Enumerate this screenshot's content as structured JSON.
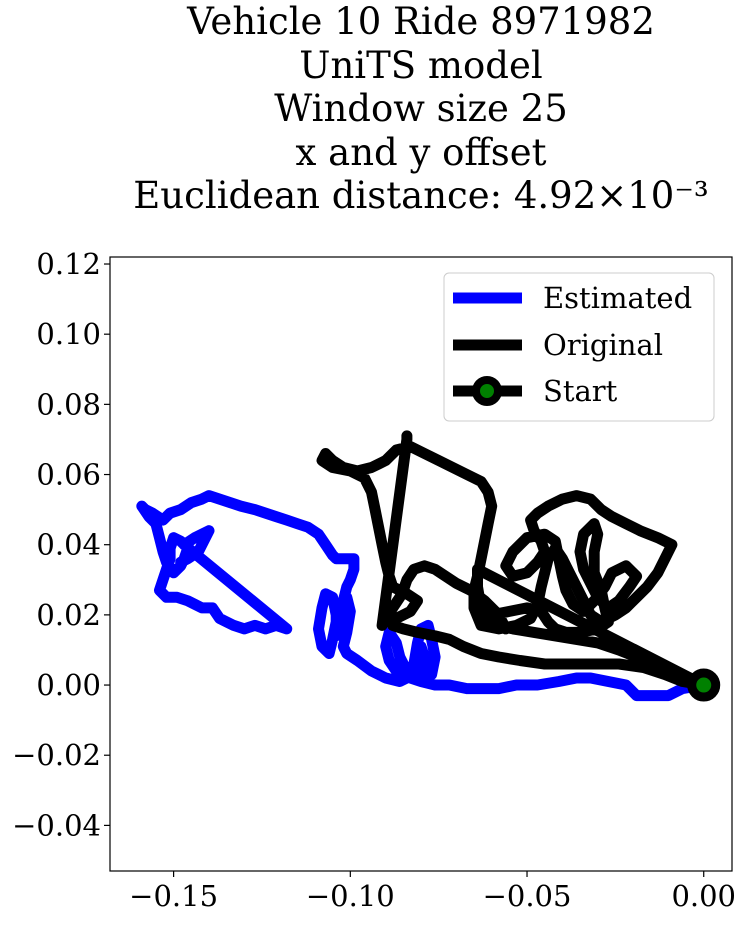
{
  "chart_data": {
    "type": "line",
    "title_lines": [
      "Vehicle 10 Ride 8971982",
      "UniTS model",
      "Window size 25",
      "x and y offset",
      "Euclidean distance: 4.92×10⁻³"
    ],
    "xlabel": "",
    "ylabel": "",
    "xlim": [
      -0.168,
      0.008
    ],
    "ylim": [
      -0.053,
      0.122
    ],
    "x_ticks": [
      -0.15,
      -0.1,
      -0.05,
      0.0
    ],
    "x_tick_labels": [
      "−0.15",
      "−0.10",
      "−0.05",
      "0.00"
    ],
    "y_ticks": [
      -0.04,
      -0.02,
      0.0,
      0.02,
      0.04,
      0.06,
      0.08,
      0.1,
      0.12
    ],
    "y_tick_labels": [
      "−0.04",
      "−0.02",
      "0.00",
      "0.02",
      "0.04",
      "0.06",
      "0.08",
      "0.10",
      "0.12"
    ],
    "grid": false,
    "legend_position": "top-right",
    "series": [
      {
        "name": "Estimated",
        "color": "#0000ff",
        "points": [
          [
            0.0,
            0.0
          ],
          [
            -0.006,
            -0.001
          ],
          [
            -0.01,
            -0.003
          ],
          [
            -0.014,
            -0.003
          ],
          [
            -0.019,
            -0.003
          ],
          [
            -0.022,
            0.0
          ],
          [
            -0.027,
            0.001
          ],
          [
            -0.032,
            0.002
          ],
          [
            -0.036,
            0.002
          ],
          [
            -0.041,
            0.001
          ],
          [
            -0.047,
            0.0
          ],
          [
            -0.053,
            0.0
          ],
          [
            -0.058,
            -0.001
          ],
          [
            -0.062,
            -0.001
          ],
          [
            -0.067,
            -0.001
          ],
          [
            -0.072,
            0.0
          ],
          [
            -0.076,
            0.0
          ],
          [
            -0.08,
            0.001
          ],
          [
            -0.083,
            0.002
          ],
          [
            -0.085,
            0.003
          ],
          [
            -0.087,
            0.004
          ],
          [
            -0.089,
            0.007
          ],
          [
            -0.09,
            0.011
          ],
          [
            -0.089,
            0.015
          ],
          [
            -0.087,
            0.012
          ],
          [
            -0.086,
            0.008
          ],
          [
            -0.084,
            0.004
          ],
          [
            -0.082,
            0.002
          ],
          [
            -0.08,
            0.004
          ],
          [
            -0.079,
            0.008
          ],
          [
            -0.08,
            0.011
          ],
          [
            -0.081,
            0.005
          ],
          [
            -0.08,
            0.002
          ],
          [
            -0.077,
            0.003
          ],
          [
            -0.076,
            0.008
          ],
          [
            -0.077,
            0.013
          ],
          [
            -0.078,
            0.017
          ],
          [
            -0.08,
            0.016
          ],
          [
            -0.081,
            0.012
          ],
          [
            -0.082,
            0.006
          ],
          [
            -0.084,
            0.002
          ],
          [
            -0.086,
            0.001
          ],
          [
            -0.09,
            0.002
          ],
          [
            -0.094,
            0.004
          ],
          [
            -0.098,
            0.007
          ],
          [
            -0.101,
            0.009
          ],
          [
            -0.102,
            0.011
          ],
          [
            -0.101,
            0.015
          ],
          [
            -0.1,
            0.021
          ],
          [
            -0.101,
            0.025
          ],
          [
            -0.102,
            0.022
          ],
          [
            -0.104,
            0.018
          ],
          [
            -0.105,
            0.013
          ],
          [
            -0.106,
            0.009
          ],
          [
            -0.108,
            0.011
          ],
          [
            -0.109,
            0.016
          ],
          [
            -0.108,
            0.022
          ],
          [
            -0.107,
            0.026
          ],
          [
            -0.105,
            0.025
          ],
          [
            -0.104,
            0.02
          ],
          [
            -0.104,
            0.014
          ],
          [
            -0.103,
            0.019
          ],
          [
            -0.102,
            0.024
          ],
          [
            -0.101,
            0.028
          ],
          [
            -0.1,
            0.03
          ],
          [
            -0.099,
            0.033
          ],
          [
            -0.099,
            0.036
          ],
          [
            -0.101,
            0.036
          ],
          [
            -0.104,
            0.036
          ],
          [
            -0.105,
            0.037
          ],
          [
            -0.107,
            0.04
          ],
          [
            -0.109,
            0.043
          ],
          [
            -0.112,
            0.045
          ],
          [
            -0.115,
            0.046
          ],
          [
            -0.118,
            0.047
          ],
          [
            -0.121,
            0.048
          ],
          [
            -0.124,
            0.049
          ],
          [
            -0.127,
            0.05
          ],
          [
            -0.131,
            0.051
          ],
          [
            -0.134,
            0.052
          ],
          [
            -0.137,
            0.053
          ],
          [
            -0.14,
            0.054
          ],
          [
            -0.142,
            0.053
          ],
          [
            -0.145,
            0.052
          ],
          [
            -0.148,
            0.05
          ],
          [
            -0.151,
            0.049
          ],
          [
            -0.153,
            0.047
          ],
          [
            -0.156,
            0.049
          ],
          [
            -0.158,
            0.05
          ],
          [
            -0.159,
            0.051
          ],
          [
            -0.157,
            0.048
          ],
          [
            -0.155,
            0.046
          ],
          [
            -0.154,
            0.042
          ],
          [
            -0.153,
            0.038
          ],
          [
            -0.152,
            0.035
          ],
          [
            -0.15,
            0.032
          ],
          [
            -0.148,
            0.034
          ],
          [
            -0.147,
            0.036
          ],
          [
            -0.146,
            0.039
          ],
          [
            -0.148,
            0.041
          ],
          [
            -0.15,
            0.042
          ],
          [
            -0.151,
            0.039
          ],
          [
            -0.151,
            0.036
          ],
          [
            -0.152,
            0.033
          ],
          [
            -0.153,
            0.03
          ],
          [
            -0.154,
            0.027
          ],
          [
            -0.152,
            0.025
          ],
          [
            -0.149,
            0.025
          ],
          [
            -0.146,
            0.024
          ],
          [
            -0.144,
            0.023
          ],
          [
            -0.142,
            0.022
          ],
          [
            -0.139,
            0.022
          ],
          [
            -0.137,
            0.019
          ],
          [
            -0.135,
            0.018
          ],
          [
            -0.133,
            0.017
          ],
          [
            -0.13,
            0.016
          ],
          [
            -0.127,
            0.017
          ],
          [
            -0.124,
            0.016
          ],
          [
            -0.121,
            0.017
          ],
          [
            -0.118,
            0.016
          ],
          [
            -0.147,
            0.04
          ],
          [
            -0.144,
            0.042
          ],
          [
            -0.142,
            0.043
          ],
          [
            -0.14,
            0.044
          ],
          [
            -0.143,
            0.038
          ],
          [
            -0.146,
            0.036
          ],
          [
            -0.148,
            0.035
          ]
        ]
      },
      {
        "name": "Original",
        "color": "#000000",
        "points": [
          [
            0.0,
            0.0
          ],
          [
            -0.004,
            0.002
          ],
          [
            -0.009,
            0.004
          ],
          [
            -0.014,
            0.006
          ],
          [
            -0.019,
            0.008
          ],
          [
            -0.024,
            0.01
          ],
          [
            -0.03,
            0.012
          ],
          [
            -0.036,
            0.013
          ],
          [
            -0.042,
            0.014
          ],
          [
            -0.048,
            0.015
          ],
          [
            -0.054,
            0.016
          ],
          [
            -0.059,
            0.017
          ],
          [
            -0.063,
            0.018
          ],
          [
            -0.06,
            0.02
          ],
          [
            -0.055,
            0.021
          ],
          [
            -0.05,
            0.022
          ],
          [
            -0.046,
            0.021
          ],
          [
            -0.044,
            0.018
          ],
          [
            -0.042,
            0.016
          ],
          [
            -0.039,
            0.015
          ],
          [
            -0.035,
            0.015
          ],
          [
            -0.03,
            0.016
          ],
          [
            -0.027,
            0.018
          ],
          [
            -0.028,
            0.022
          ],
          [
            -0.029,
            0.027
          ],
          [
            -0.031,
            0.032
          ],
          [
            -0.031,
            0.038
          ],
          [
            -0.03,
            0.043
          ],
          [
            -0.031,
            0.046
          ],
          [
            -0.034,
            0.043
          ],
          [
            -0.035,
            0.038
          ],
          [
            -0.034,
            0.033
          ],
          [
            -0.032,
            0.029
          ],
          [
            -0.03,
            0.025
          ],
          [
            -0.027,
            0.022
          ],
          [
            -0.024,
            0.024
          ],
          [
            -0.021,
            0.028
          ],
          [
            -0.019,
            0.031
          ],
          [
            -0.022,
            0.034
          ],
          [
            -0.026,
            0.032
          ],
          [
            -0.028,
            0.028
          ],
          [
            -0.031,
            0.024
          ],
          [
            -0.034,
            0.021
          ],
          [
            -0.037,
            0.023
          ],
          [
            -0.039,
            0.027
          ],
          [
            -0.04,
            0.031
          ],
          [
            -0.041,
            0.036
          ],
          [
            -0.042,
            0.041
          ],
          [
            -0.045,
            0.043
          ],
          [
            -0.05,
            0.042
          ],
          [
            -0.054,
            0.038
          ],
          [
            -0.056,
            0.034
          ],
          [
            -0.054,
            0.031
          ],
          [
            -0.05,
            0.032
          ],
          [
            -0.047,
            0.035
          ],
          [
            -0.045,
            0.038
          ],
          [
            -0.046,
            0.041
          ],
          [
            -0.048,
            0.044
          ],
          [
            -0.049,
            0.047
          ],
          [
            -0.047,
            0.049
          ],
          [
            -0.044,
            0.051
          ],
          [
            -0.04,
            0.053
          ],
          [
            -0.036,
            0.054
          ],
          [
            -0.032,
            0.053
          ],
          [
            -0.029,
            0.05
          ],
          [
            -0.026,
            0.048
          ],
          [
            -0.022,
            0.046
          ],
          [
            -0.018,
            0.044
          ],
          [
            -0.013,
            0.042
          ],
          [
            -0.009,
            0.04
          ],
          [
            -0.011,
            0.036
          ],
          [
            -0.013,
            0.032
          ],
          [
            -0.016,
            0.028
          ],
          [
            -0.019,
            0.025
          ],
          [
            -0.022,
            0.022
          ],
          [
            -0.025,
            0.02
          ],
          [
            -0.029,
            0.018
          ],
          [
            -0.032,
            0.02
          ],
          [
            -0.034,
            0.024
          ],
          [
            -0.036,
            0.028
          ],
          [
            -0.038,
            0.032
          ],
          [
            -0.04,
            0.036
          ],
          [
            -0.042,
            0.039
          ],
          [
            -0.044,
            0.036
          ],
          [
            -0.045,
            0.032
          ],
          [
            -0.046,
            0.028
          ],
          [
            -0.047,
            0.023
          ],
          [
            -0.049,
            0.019
          ],
          [
            -0.053,
            0.017
          ],
          [
            -0.058,
            0.016
          ],
          [
            -0.063,
            0.017
          ],
          [
            -0.065,
            0.022
          ],
          [
            -0.065,
            0.027
          ],
          [
            -0.064,
            0.031
          ],
          [
            -0.063,
            0.036
          ],
          [
            -0.062,
            0.041
          ],
          [
            -0.061,
            0.046
          ],
          [
            -0.06,
            0.051
          ],
          [
            -0.061,
            0.055
          ],
          [
            -0.063,
            0.058
          ],
          [
            -0.067,
            0.06
          ],
          [
            -0.071,
            0.062
          ],
          [
            -0.075,
            0.064
          ],
          [
            -0.079,
            0.066
          ],
          [
            -0.083,
            0.068
          ],
          [
            -0.087,
            0.067
          ],
          [
            -0.09,
            0.064
          ],
          [
            -0.094,
            0.062
          ],
          [
            -0.098,
            0.061
          ],
          [
            -0.102,
            0.062
          ],
          [
            -0.105,
            0.064
          ],
          [
            -0.107,
            0.066
          ],
          [
            -0.108,
            0.064
          ],
          [
            -0.105,
            0.062
          ],
          [
            -0.1,
            0.061
          ],
          [
            -0.096,
            0.059
          ],
          [
            -0.094,
            0.055
          ],
          [
            -0.093,
            0.05
          ],
          [
            -0.092,
            0.045
          ],
          [
            -0.091,
            0.04
          ],
          [
            -0.09,
            0.035
          ],
          [
            -0.089,
            0.031
          ],
          [
            -0.088,
            0.028
          ],
          [
            -0.084,
            0.026
          ],
          [
            -0.081,
            0.024
          ],
          [
            -0.083,
            0.021
          ],
          [
            -0.087,
            0.019
          ],
          [
            -0.088,
            0.017
          ],
          [
            -0.085,
            0.016
          ],
          [
            -0.081,
            0.015
          ],
          [
            -0.076,
            0.014
          ],
          [
            -0.072,
            0.013
          ],
          [
            -0.068,
            0.011
          ],
          [
            -0.063,
            0.009
          ],
          [
            -0.058,
            0.008
          ],
          [
            -0.052,
            0.007
          ],
          [
            -0.045,
            0.006
          ],
          [
            -0.038,
            0.006
          ],
          [
            -0.031,
            0.006
          ],
          [
            -0.024,
            0.006
          ],
          [
            -0.017,
            0.005
          ],
          [
            -0.011,
            0.003
          ],
          [
            -0.006,
            0.001
          ],
          [
            0.0,
            0.0
          ],
          [
            -0.064,
            0.033
          ],
          [
            -0.064,
            0.028
          ],
          [
            -0.063,
            0.022
          ],
          [
            -0.06,
            0.018
          ],
          [
            -0.056,
            0.016
          ],
          [
            -0.058,
            0.02
          ],
          [
            -0.062,
            0.024
          ],
          [
            -0.066,
            0.027
          ],
          [
            -0.07,
            0.029
          ],
          [
            -0.073,
            0.031
          ],
          [
            -0.076,
            0.033
          ],
          [
            -0.079,
            0.034
          ],
          [
            -0.082,
            0.033
          ],
          [
            -0.084,
            0.03
          ],
          [
            -0.085,
            0.027
          ],
          [
            -0.086,
            0.025
          ],
          [
            -0.088,
            0.022
          ],
          [
            -0.09,
            0.019
          ],
          [
            -0.091,
            0.017
          ],
          [
            -0.084,
            0.07
          ],
          [
            -0.084,
            0.071
          ]
        ]
      }
    ],
    "start_point": {
      "name": "Start",
      "x": 0.0,
      "y": 0.0,
      "marker_face_color": "#008000",
      "marker_edge_color": "#000000"
    }
  }
}
